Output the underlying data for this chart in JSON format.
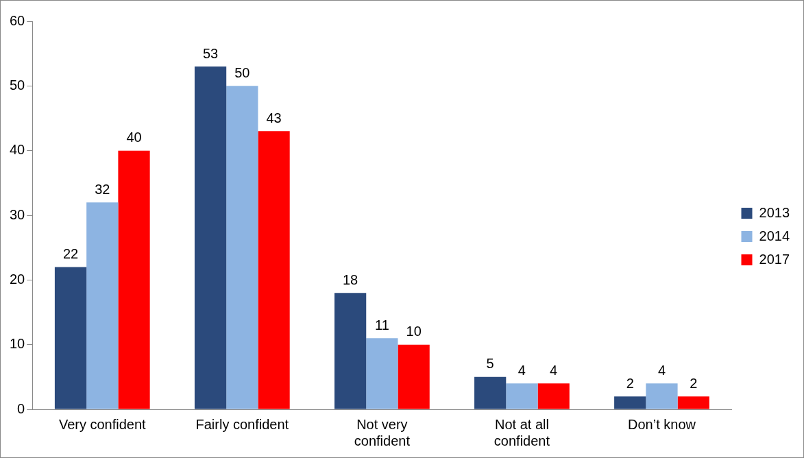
{
  "chart_data": {
    "type": "bar",
    "categories": [
      "Very confident",
      "Fairly confident",
      "Not very confident",
      "Not at all confident",
      "Don’t know"
    ],
    "series": [
      {
        "name": "2013",
        "color": "#2b4a7c",
        "values": [
          22,
          53,
          18,
          5,
          2
        ]
      },
      {
        "name": "2014",
        "color": "#8db4e2",
        "values": [
          32,
          50,
          11,
          4,
          4
        ]
      },
      {
        "name": "2017",
        "color": "#ff0000",
        "values": [
          40,
          43,
          10,
          4,
          2
        ]
      }
    ],
    "ylim": [
      0,
      60
    ],
    "yticks": [
      0,
      10,
      20,
      30,
      40,
      50,
      60
    ],
    "grid": false,
    "legend": "right",
    "data_labels": true
  }
}
